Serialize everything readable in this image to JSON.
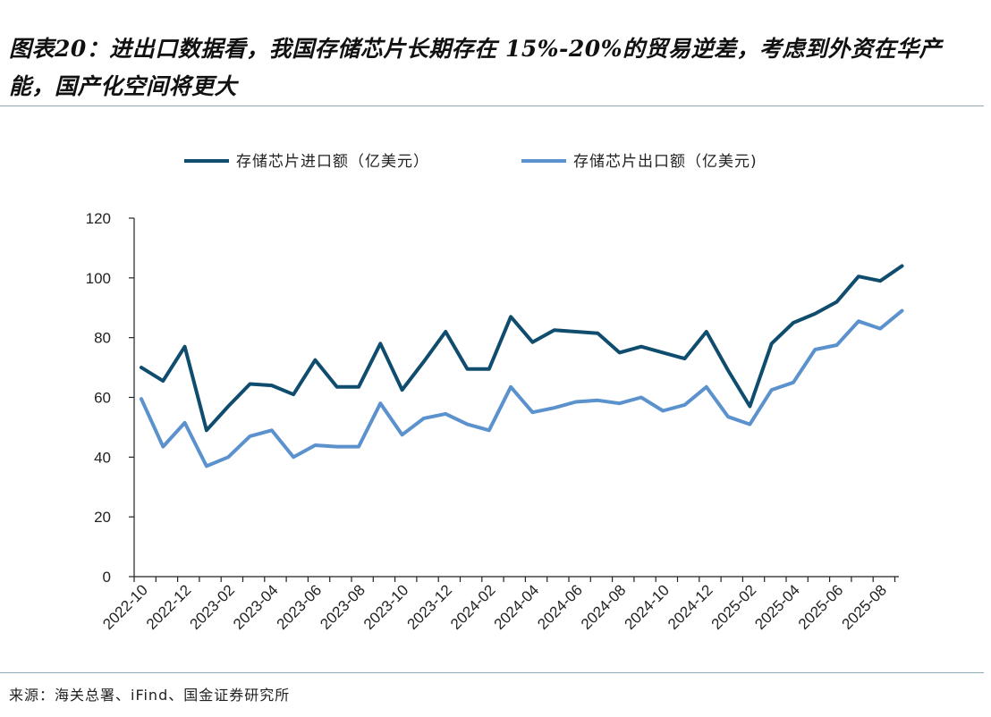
{
  "title": "图表20：进出口数据看，我国存储芯片长期存在 15%-20%的贸易逆差，考虑到外资在华产能，国产化空间将更大",
  "source": "来源：海关总署、iFind、国金证券研究所",
  "chart_data": {
    "type": "line",
    "ylim": [
      0,
      120
    ],
    "y_ticks": [
      0,
      20,
      40,
      60,
      80,
      100,
      120
    ],
    "x_tick_labels": [
      "2022-10",
      "2022-12",
      "2023-02",
      "2023-04",
      "2023-06",
      "2023-08",
      "2023-10",
      "2023-12",
      "2024-02",
      "2024-04",
      "2024-06",
      "2024-08",
      "2024-10",
      "2024-12",
      "2025-02",
      "2025-04",
      "2025-06",
      "2025-08"
    ],
    "x": [
      "2022-10",
      "2022-11",
      "2022-12",
      "2023-01",
      "2023-02",
      "2023-03",
      "2023-04",
      "2023-05",
      "2023-06",
      "2023-07",
      "2023-08",
      "2023-09",
      "2023-10",
      "2023-11",
      "2023-12",
      "2024-01",
      "2024-02",
      "2024-03",
      "2024-04",
      "2024-05",
      "2024-06",
      "2024-07",
      "2024-08",
      "2024-09",
      "2024-10",
      "2024-11",
      "2024-12",
      "2025-01",
      "2025-02",
      "2025-03",
      "2025-04",
      "2025-05",
      "2025-06",
      "2025-07",
      "2025-08",
      "2025-09"
    ],
    "grid": false,
    "legend_position": "top",
    "series": [
      {
        "name": "存储芯片进口额（亿美元）",
        "color": "#0f4c6e",
        "values": [
          70,
          65.5,
          77,
          49,
          57,
          64.5,
          64,
          61,
          72.5,
          63.5,
          63.5,
          78,
          62.5,
          72,
          82,
          69.5,
          69.5,
          87,
          78.5,
          82.5,
          82,
          81.5,
          75,
          77,
          75,
          73,
          82,
          69,
          57,
          78,
          85,
          88,
          92,
          100.5,
          99,
          104
        ]
      },
      {
        "name": "存储芯片出口额（亿美元)",
        "color": "#5b92cd",
        "values": [
          59.5,
          43.5,
          51.5,
          37,
          40,
          47,
          49,
          40,
          44,
          43.5,
          43.5,
          58,
          47.5,
          53,
          54.5,
          51,
          49,
          63.5,
          55,
          56.5,
          58.5,
          59,
          58,
          60,
          55.5,
          57.5,
          63.5,
          53.5,
          51,
          62.5,
          65,
          76,
          77.5,
          85.5,
          83,
          89
        ]
      }
    ]
  }
}
